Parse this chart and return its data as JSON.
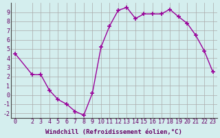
{
  "x": [
    0,
    2,
    3,
    4,
    5,
    6,
    7,
    8,
    9,
    10,
    11,
    12,
    13,
    14,
    15,
    16,
    17,
    18,
    19,
    20,
    21,
    22,
    23
  ],
  "y": [
    4.5,
    2.2,
    2.2,
    0.5,
    -0.5,
    -1.0,
    -1.8,
    -2.2,
    0.2,
    5.2,
    7.5,
    9.2,
    9.5,
    8.3,
    8.8,
    8.8,
    8.8,
    9.3,
    8.5,
    7.8,
    6.5,
    4.8,
    2.5
  ],
  "xlabel": "Windchill (Refroidissement éolien,°C)",
  "ylim": [
    -2.5,
    10
  ],
  "xlim": [
    -0.5,
    23.5
  ],
  "yticks": [
    -2,
    -1,
    0,
    1,
    2,
    3,
    4,
    5,
    6,
    7,
    8,
    9
  ],
  "xticks": [
    0,
    2,
    3,
    4,
    5,
    6,
    7,
    8,
    9,
    10,
    11,
    12,
    13,
    14,
    15,
    16,
    17,
    18,
    19,
    20,
    21,
    22,
    23
  ],
  "line_color": "#990099",
  "marker": "+",
  "bg_color": "#d4eeee",
  "grid_color": "#aaaaaa",
  "text_color": "#660066",
  "label_fontsize": 6.5,
  "tick_fontsize": 6
}
